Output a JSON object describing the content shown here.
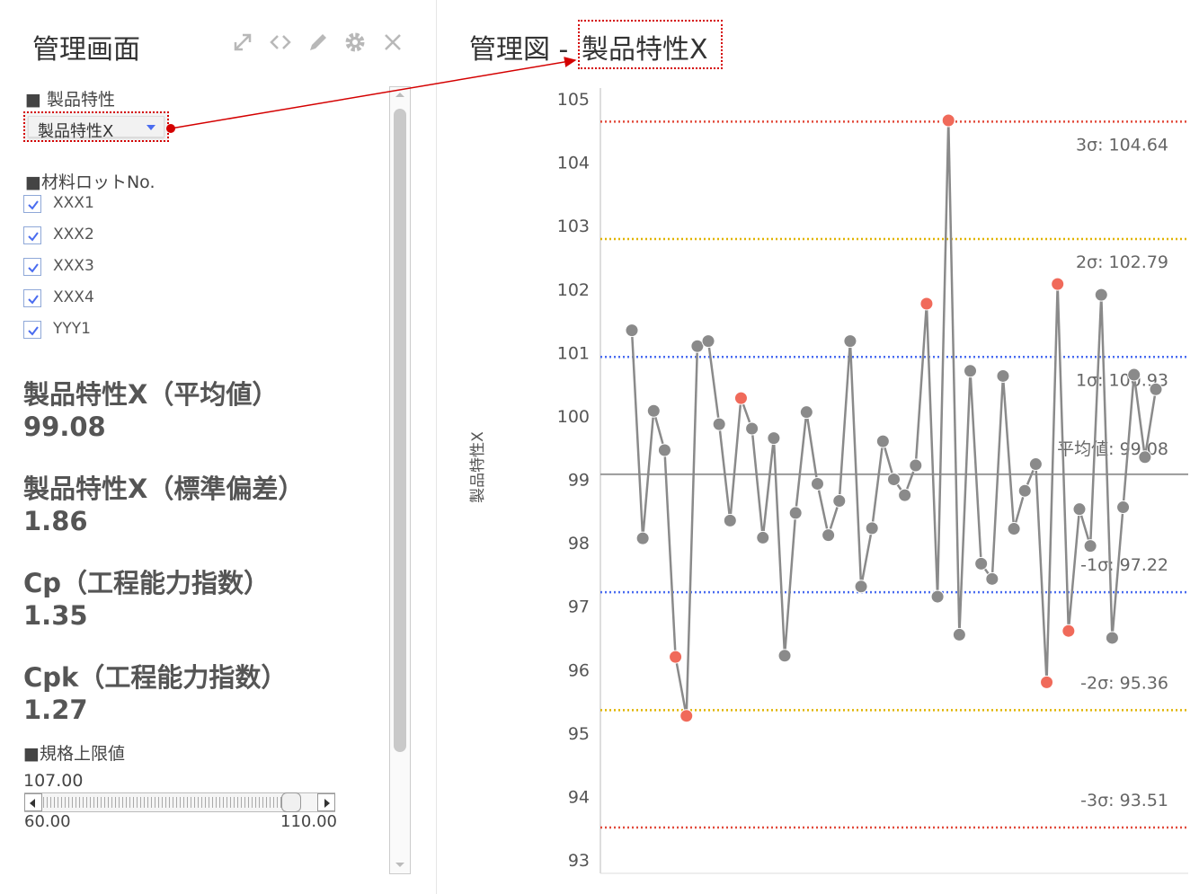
{
  "panel": {
    "title": "管理画面",
    "icons": [
      "expand-icon",
      "code-icon",
      "edit-icon",
      "gear-icon",
      "close-icon"
    ]
  },
  "product": {
    "label": "■ 製品特性",
    "selected": "製品特性X"
  },
  "lots": {
    "label": "■材料ロットNo.",
    "items": [
      {
        "name": "XXX1",
        "checked": true
      },
      {
        "name": "XXX2",
        "checked": true
      },
      {
        "name": "XXX3",
        "checked": true
      },
      {
        "name": "XXX4",
        "checked": true
      },
      {
        "name": "YYY1",
        "checked": true
      }
    ]
  },
  "stats": [
    {
      "title": "製品特性X（平均値）",
      "value": "99.08"
    },
    {
      "title": "製品特性X（標準偏差）",
      "value": "1.86"
    },
    {
      "title": "Cp（工程能力指数）",
      "value": "1.35"
    },
    {
      "title": "Cpk（工程能力指数）",
      "value": "1.27"
    }
  ],
  "upper_limit": {
    "label": "■規格上限値",
    "value": "107.00",
    "min": "60.00",
    "max": "110.00",
    "position_fraction": 0.94
  },
  "chart_header": {
    "prefix": "管理図 - ",
    "variable": "製品特性X"
  },
  "colors": {
    "sigma3": "#e24a3b",
    "sigma2": "#e0b400",
    "sigma1": "#4a6cf0",
    "mean": "#999999",
    "point": "#8a8a8a",
    "point_out": "#f06a5a",
    "annotation": "#d40000"
  },
  "chart_data": {
    "type": "line",
    "ylabel": "製品特性X",
    "xlabel": "",
    "ylim": [
      93,
      105
    ],
    "yticks": [
      93,
      94,
      95,
      96,
      97,
      98,
      99,
      100,
      101,
      102,
      103,
      104,
      105
    ],
    "grid": false,
    "reference_lines": [
      {
        "label": "3σ: 104.64",
        "value": 104.64,
        "kind": "sigma3"
      },
      {
        "label": "2σ: 102.79",
        "value": 102.79,
        "kind": "sigma2"
      },
      {
        "label": "1σ: 100.93",
        "value": 100.93,
        "kind": "sigma1"
      },
      {
        "label": "平均値: 99.08",
        "value": 99.08,
        "kind": "mean"
      },
      {
        "label": "-1σ: 97.22",
        "value": 97.22,
        "kind": "sigma1"
      },
      {
        "label": "-2σ: 95.36",
        "value": 95.36,
        "kind": "sigma2"
      },
      {
        "label": "-3σ: 93.51",
        "value": 93.51,
        "kind": "sigma3"
      }
    ],
    "series": [
      {
        "values": [
          101.35,
          98.07,
          100.08,
          99.46,
          96.2,
          95.27,
          101.1,
          101.18,
          99.87,
          98.35,
          100.28,
          99.8,
          98.08,
          99.65,
          96.22,
          98.47,
          100.06,
          98.93,
          98.12,
          98.66,
          101.18,
          97.31,
          98.23,
          99.6,
          99.0,
          98.75,
          99.22,
          101.77,
          97.15,
          104.66,
          96.55,
          100.71,
          97.67,
          97.43,
          100.63,
          98.22,
          98.82,
          99.24,
          95.8,
          102.08,
          96.61,
          98.53,
          97.95,
          101.91,
          96.5,
          98.56,
          100.65,
          99.35,
          100.42
        ],
        "out_of_control": [
          4,
          5,
          10,
          27,
          29,
          38,
          39,
          40
        ]
      }
    ]
  }
}
